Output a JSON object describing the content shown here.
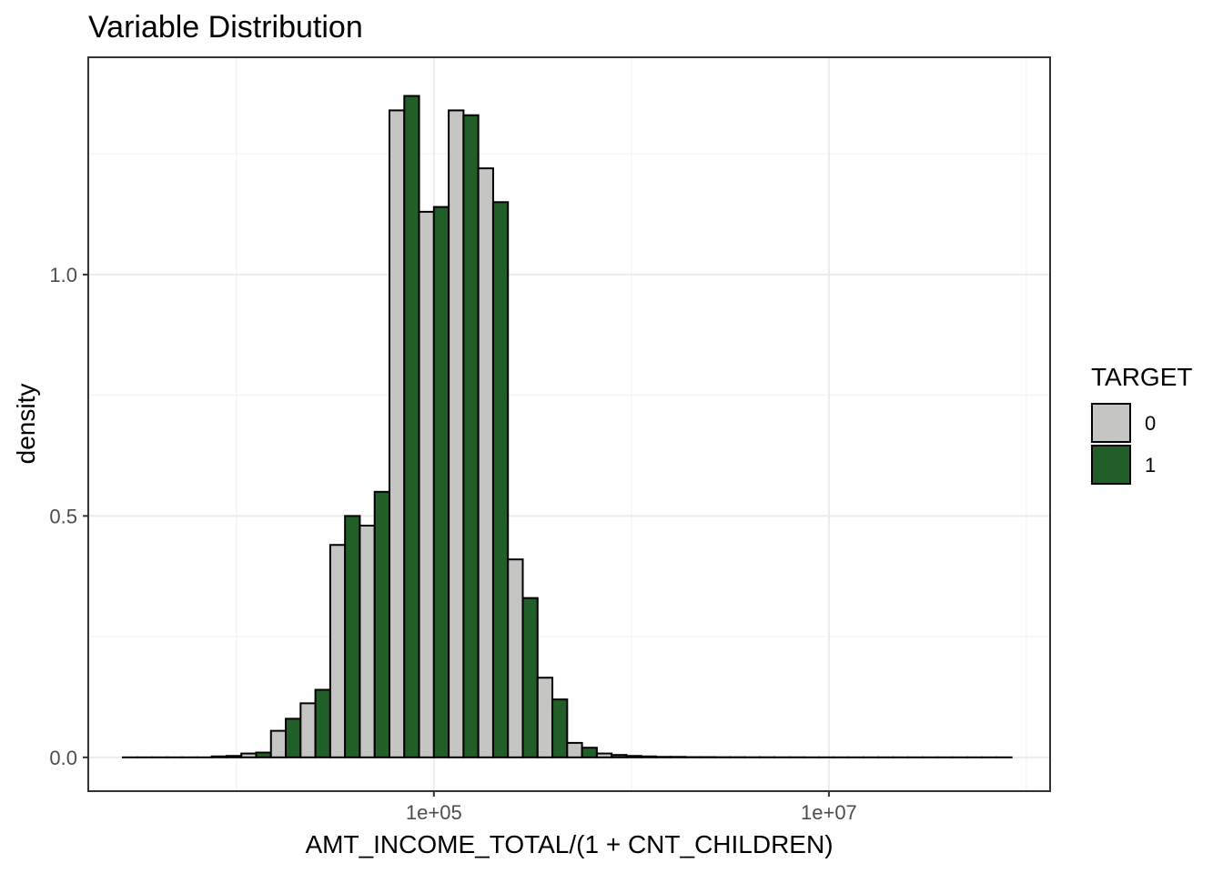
{
  "chart_data": {
    "type": "bar",
    "title": "Variable Distribution",
    "xlabel": "AMT_INCOME_TOTAL/(1 + CNT_CHILDREN)",
    "ylabel": "density",
    "x_scale": "log10",
    "x_ticks": [
      {
        "value": 100000,
        "label": "1e+05"
      },
      {
        "value": 10000000,
        "label": "1e+07"
      }
    ],
    "y_ticks": [
      {
        "value": 0.0,
        "label": "0.0"
      },
      {
        "value": 0.5,
        "label": "0.5"
      },
      {
        "value": 1.0,
        "label": "1.0"
      }
    ],
    "ylim": [
      -0.07,
      1.45
    ],
    "xlim_log10": [
      3.25,
      8.12
    ],
    "bin_centers_log10": [
      3.5,
      3.65,
      3.8,
      3.95,
      4.1,
      4.25,
      4.4,
      4.55,
      4.7,
      4.85,
      5.0,
      5.15,
      5.3,
      5.45,
      5.6,
      5.75,
      5.9,
      6.05,
      6.2,
      6.35,
      6.5,
      6.65,
      6.8,
      6.95,
      7.1,
      7.25,
      7.4,
      7.55,
      7.7,
      7.85
    ],
    "bin_width_log10": 0.15,
    "grid": true,
    "legend": {
      "title": "TARGET",
      "position": "right"
    },
    "series": [
      {
        "name": "0",
        "color": "#c5c6c3",
        "values": [
          0.0,
          0.0,
          0.0,
          0.002,
          0.008,
          0.055,
          0.112,
          0.44,
          0.48,
          1.34,
          1.13,
          1.34,
          1.22,
          0.41,
          0.165,
          0.03,
          0.008,
          0.003,
          0.001,
          0.0005,
          0.0003,
          0.0002,
          0.0001,
          0.0,
          0.0,
          0.0,
          0.0,
          0.0,
          0.0,
          0.0
        ]
      },
      {
        "name": "1",
        "color": "#225e28",
        "values": [
          0.0,
          0.0,
          0.0,
          0.003,
          0.01,
          0.08,
          0.14,
          0.5,
          0.55,
          1.37,
          1.14,
          1.33,
          1.15,
          0.33,
          0.12,
          0.02,
          0.005,
          0.002,
          0.001,
          0.0005,
          0.0003,
          0.0002,
          0.0001,
          0.0,
          0.0,
          0.0,
          0.0,
          0.0,
          0.0,
          0.0
        ]
      }
    ]
  }
}
